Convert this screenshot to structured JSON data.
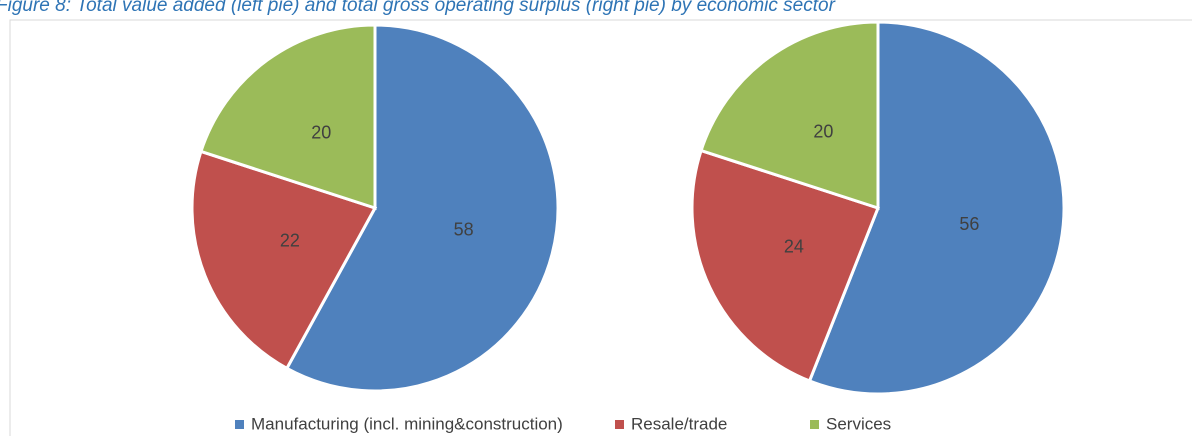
{
  "title": "Figure 8: Total value added (left pie) and total gross operating surplus (right pie) by economic sector",
  "chart_data": [
    {
      "type": "pie",
      "categories": [
        "Manufacturing (incl. mining&construction)",
        "Resale/trade",
        "Services"
      ],
      "colors": [
        "#4f81bd",
        "#c0504d",
        "#9bbb59"
      ],
      "values": [
        58,
        22,
        20
      ]
    },
    {
      "type": "pie",
      "colors": [
        "#4f81bd",
        "#c0504d",
        "#9bbb59"
      ],
      "values": [
        56,
        24,
        20
      ]
    }
  ]
}
